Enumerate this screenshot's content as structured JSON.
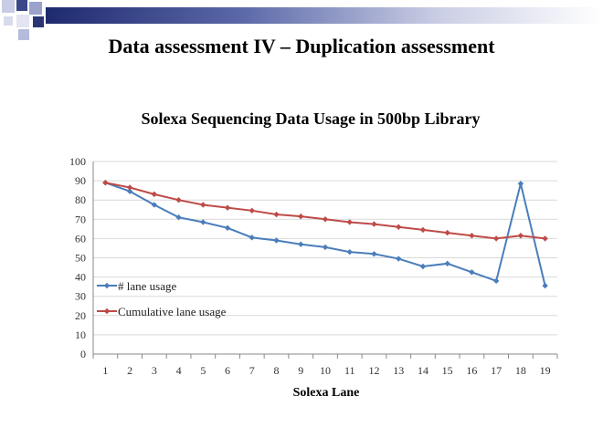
{
  "slide": {
    "title": "Data assessment IV – Duplication assessment"
  },
  "chart_data": {
    "type": "line",
    "title": "Solexa Sequencing Data Usage in 500bp Library",
    "xlabel": "Solexa Lane",
    "ylabel": "",
    "categories": [
      "1",
      "2",
      "3",
      "4",
      "5",
      "6",
      "7",
      "8",
      "9",
      "10",
      "11",
      "12",
      "13",
      "14",
      "15",
      "16",
      "17",
      "18",
      "19"
    ],
    "ylim": [
      0,
      100
    ],
    "yticks": [
      "0",
      "10",
      "20",
      "30",
      "40",
      "50",
      "60",
      "70",
      "80",
      "90",
      "100"
    ],
    "grid": "horizontal",
    "legend_position": "left",
    "series": [
      {
        "name": "# lane usage",
        "color": "#4a7ebb",
        "marker": "diamond",
        "values": [
          89,
          84.5,
          77.5,
          71,
          68.5,
          65.5,
          60.5,
          59,
          57,
          55.5,
          53,
          52,
          49.5,
          45.5,
          47,
          42.5,
          38,
          88.5,
          35.5
        ]
      },
      {
        "name": "Cumulative lane usage",
        "color": "#be4b48",
        "marker": "diamond",
        "values": [
          89,
          86.5,
          83,
          80,
          77.5,
          76,
          74.5,
          72.5,
          71.5,
          70,
          68.5,
          67.5,
          66,
          64.5,
          63,
          61.5,
          60,
          61.5,
          60
        ]
      }
    ]
  }
}
